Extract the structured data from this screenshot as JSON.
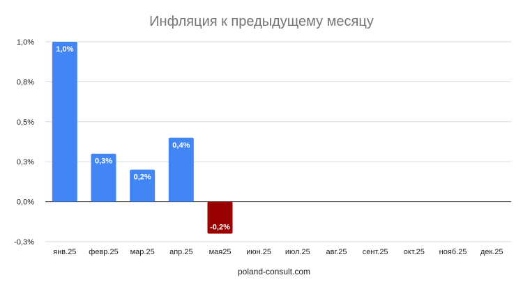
{
  "chart_data": {
    "type": "bar",
    "title": "Инфляция к предыдущему месяцу",
    "xlabel": "poland-consult.com",
    "ylabel": "",
    "categories": [
      "янв.25",
      "февр.25",
      "мар.25",
      "апр.25",
      "мая25",
      "июн.25",
      "июл.25",
      "авг.25",
      "сент.25",
      "окт.25",
      "нояб.25",
      "дек.25"
    ],
    "values": [
      1.0,
      0.3,
      0.2,
      0.4,
      -0.2,
      null,
      null,
      null,
      null,
      null,
      null,
      null
    ],
    "value_labels": [
      "1,0%",
      "0,3%",
      "0,2%",
      "0,4%",
      "-0,2%",
      "",
      "",
      "",
      "",
      "",
      "",
      ""
    ],
    "ylim": [
      -0.25,
      1.0
    ],
    "y_ticks": [
      1.0,
      0.75,
      0.5,
      0.25,
      0.0,
      -0.25
    ],
    "y_tick_labels": [
      "1,0%",
      "0,8%",
      "0,5%",
      "0,3%",
      "0,0%",
      "-0,3%"
    ],
    "grid": true,
    "legend": "none",
    "colors": {
      "positive": "#4285f4",
      "negative": "#990000",
      "grid": "#d9d9d9",
      "title": "#757575"
    }
  }
}
